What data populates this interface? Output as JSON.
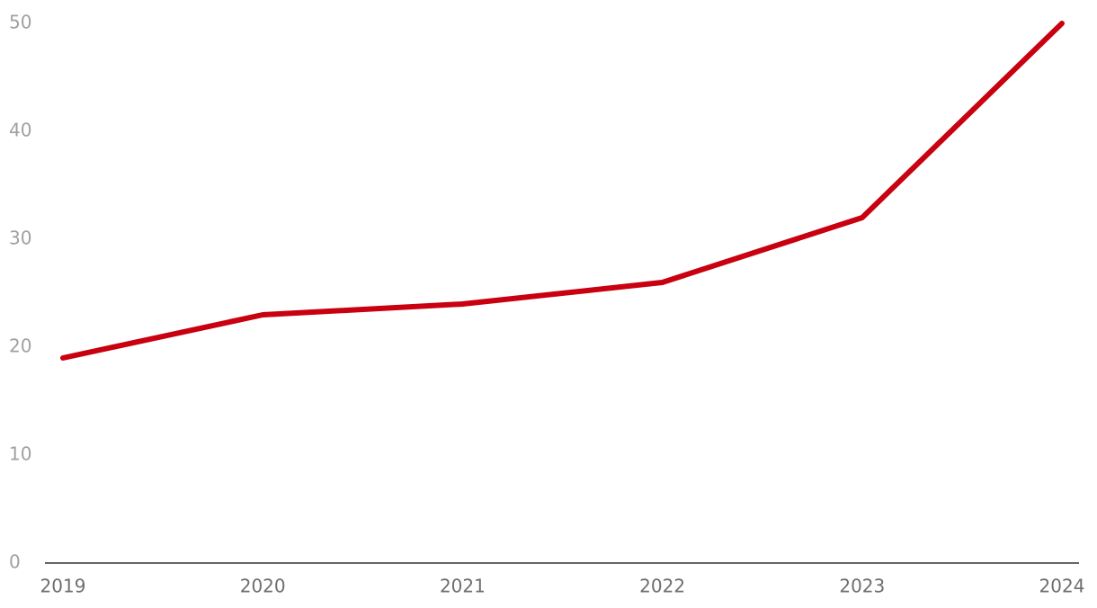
{
  "chart_data": {
    "type": "line",
    "categories": [
      "2019",
      "2020",
      "2021",
      "2022",
      "2023",
      "2024"
    ],
    "values": [
      19,
      23,
      24,
      26,
      32,
      50
    ],
    "color": "#c8000f",
    "ylim": [
      0,
      50
    ],
    "yticks": [
      0,
      10,
      20,
      30,
      40,
      50
    ]
  }
}
